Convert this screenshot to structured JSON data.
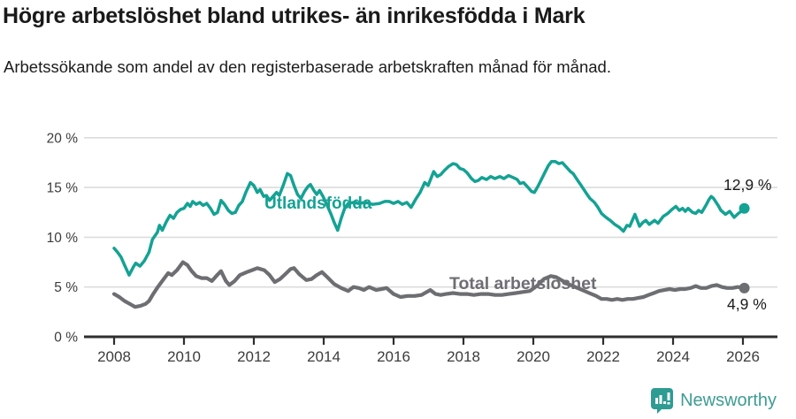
{
  "header": {
    "title": "Högre arbetslöshet bland utrikes- än inrikesfödda i Mark",
    "subtitle": "Arbetssökande som andel av den registerbaserade arbetskraften månad för månad."
  },
  "footer": {
    "brand": "Newsworthy"
  },
  "colors": {
    "foreign_born": "#14a294",
    "total": "#6d6e72",
    "grid": "#dcdcdc",
    "axis": "#2e2e2e",
    "tick_text": "#3c3c3c",
    "brand": "#2e9c93"
  },
  "chart_data": {
    "type": "line",
    "title": "Högre arbetslöshet bland utrikes- än inrikesfödda i Mark",
    "subtitle": "Arbetssökande som andel av den registerbaserade arbetskraften månad för månad.",
    "xlabel": "",
    "ylabel": "",
    "grid": true,
    "legend_position": "inline-labels",
    "xlim": [
      2007.55,
      2026.6
    ],
    "ylim": [
      0,
      20
    ],
    "x_ticks": [
      2008,
      2010,
      2012,
      2014,
      2016,
      2018,
      2020,
      2022,
      2024,
      2026
    ],
    "y_ticks": [
      0,
      5,
      10,
      15,
      20
    ],
    "y_tick_labels": [
      "0 %",
      "5 %",
      "10 %",
      "15 %",
      "20 %"
    ],
    "series": [
      {
        "name": "Utlandsfödda",
        "color": "#14a294",
        "end_value": 12.9,
        "end_label": "12,9 %",
        "points": [
          [
            2008.0,
            8.9
          ],
          [
            2008.1,
            8.5
          ],
          [
            2008.2,
            8.0
          ],
          [
            2008.3,
            7.2
          ],
          [
            2008.43,
            6.2
          ],
          [
            2008.55,
            7.0
          ],
          [
            2008.62,
            7.4
          ],
          [
            2008.74,
            7.1
          ],
          [
            2008.86,
            7.6
          ],
          [
            2009.0,
            8.5
          ],
          [
            2009.1,
            9.8
          ],
          [
            2009.24,
            10.5
          ],
          [
            2009.3,
            11.2
          ],
          [
            2009.38,
            10.7
          ],
          [
            2009.5,
            11.6
          ],
          [
            2009.6,
            12.2
          ],
          [
            2009.7,
            11.9
          ],
          [
            2009.8,
            12.5
          ],
          [
            2009.9,
            12.8
          ],
          [
            2010.0,
            12.9
          ],
          [
            2010.1,
            13.4
          ],
          [
            2010.18,
            13.1
          ],
          [
            2010.25,
            13.6
          ],
          [
            2010.35,
            13.3
          ],
          [
            2010.45,
            13.5
          ],
          [
            2010.55,
            13.2
          ],
          [
            2010.65,
            13.4
          ],
          [
            2010.76,
            12.9
          ],
          [
            2010.86,
            12.3
          ],
          [
            2010.96,
            12.5
          ],
          [
            2011.06,
            13.7
          ],
          [
            2011.16,
            13.3
          ],
          [
            2011.27,
            12.7
          ],
          [
            2011.37,
            12.4
          ],
          [
            2011.47,
            12.5
          ],
          [
            2011.57,
            13.2
          ],
          [
            2011.67,
            13.6
          ],
          [
            2011.77,
            14.5
          ],
          [
            2011.9,
            15.5
          ],
          [
            2012.0,
            15.2
          ],
          [
            2012.1,
            14.5
          ],
          [
            2012.18,
            14.8
          ],
          [
            2012.28,
            14.1
          ],
          [
            2012.36,
            14.2
          ],
          [
            2012.45,
            13.7
          ],
          [
            2012.55,
            14.1
          ],
          [
            2012.65,
            14.5
          ],
          [
            2012.73,
            14.2
          ],
          [
            2012.84,
            15.2
          ],
          [
            2012.96,
            16.4
          ],
          [
            2013.05,
            16.2
          ],
          [
            2013.15,
            15.2
          ],
          [
            2013.25,
            14.3
          ],
          [
            2013.35,
            13.9
          ],
          [
            2013.45,
            14.6
          ],
          [
            2013.55,
            15.1
          ],
          [
            2013.62,
            15.3
          ],
          [
            2013.72,
            14.7
          ],
          [
            2013.8,
            14.3
          ],
          [
            2013.88,
            14.7
          ],
          [
            2013.98,
            14.1
          ],
          [
            2014.1,
            13.2
          ],
          [
            2014.2,
            12.4
          ],
          [
            2014.3,
            11.5
          ],
          [
            2014.4,
            10.7
          ],
          [
            2014.5,
            11.9
          ],
          [
            2014.6,
            12.9
          ],
          [
            2014.7,
            13.4
          ],
          [
            2014.85,
            13.5
          ],
          [
            2015.0,
            13.4
          ],
          [
            2015.2,
            13.5
          ],
          [
            2015.4,
            13.3
          ],
          [
            2015.6,
            13.4
          ],
          [
            2015.75,
            13.6
          ],
          [
            2015.87,
            13.6
          ],
          [
            2016.0,
            13.4
          ],
          [
            2016.13,
            13.6
          ],
          [
            2016.25,
            13.3
          ],
          [
            2016.38,
            13.5
          ],
          [
            2016.5,
            13.0
          ],
          [
            2016.63,
            13.8
          ],
          [
            2016.76,
            14.5
          ],
          [
            2016.89,
            15.5
          ],
          [
            2016.99,
            15.2
          ],
          [
            2017.09,
            16.1
          ],
          [
            2017.15,
            16.6
          ],
          [
            2017.25,
            16.1
          ],
          [
            2017.35,
            16.3
          ],
          [
            2017.45,
            16.7
          ],
          [
            2017.57,
            17.1
          ],
          [
            2017.7,
            17.4
          ],
          [
            2017.8,
            17.3
          ],
          [
            2017.9,
            16.9
          ],
          [
            2018.0,
            16.8
          ],
          [
            2018.1,
            16.5
          ],
          [
            2018.23,
            15.9
          ],
          [
            2018.33,
            15.6
          ],
          [
            2018.42,
            15.7
          ],
          [
            2018.53,
            16.0
          ],
          [
            2018.66,
            15.8
          ],
          [
            2018.78,
            16.1
          ],
          [
            2018.9,
            15.9
          ],
          [
            2019.04,
            16.1
          ],
          [
            2019.16,
            15.9
          ],
          [
            2019.29,
            16.2
          ],
          [
            2019.42,
            16.0
          ],
          [
            2019.54,
            15.8
          ],
          [
            2019.62,
            15.4
          ],
          [
            2019.72,
            15.5
          ],
          [
            2019.85,
            15.0
          ],
          [
            2019.95,
            14.6
          ],
          [
            2020.03,
            14.5
          ],
          [
            2020.13,
            15.1
          ],
          [
            2020.23,
            15.8
          ],
          [
            2020.33,
            16.5
          ],
          [
            2020.43,
            17.2
          ],
          [
            2020.52,
            17.6
          ],
          [
            2020.63,
            17.6
          ],
          [
            2020.73,
            17.4
          ],
          [
            2020.83,
            17.5
          ],
          [
            2020.96,
            17.0
          ],
          [
            2021.06,
            16.6
          ],
          [
            2021.14,
            16.4
          ],
          [
            2021.27,
            15.7
          ],
          [
            2021.37,
            15.2
          ],
          [
            2021.5,
            14.5
          ],
          [
            2021.62,
            13.9
          ],
          [
            2021.75,
            13.5
          ],
          [
            2021.85,
            13.0
          ],
          [
            2021.95,
            12.4
          ],
          [
            2022.08,
            12.0
          ],
          [
            2022.2,
            11.7
          ],
          [
            2022.33,
            11.3
          ],
          [
            2022.46,
            11.0
          ],
          [
            2022.58,
            10.6
          ],
          [
            2022.68,
            11.2
          ],
          [
            2022.76,
            11.1
          ],
          [
            2022.91,
            12.3
          ],
          [
            2023.04,
            11.1
          ],
          [
            2023.14,
            11.5
          ],
          [
            2023.22,
            11.7
          ],
          [
            2023.32,
            11.3
          ],
          [
            2023.47,
            11.7
          ],
          [
            2023.57,
            11.4
          ],
          [
            2023.72,
            12.1
          ],
          [
            2023.85,
            12.4
          ],
          [
            2023.97,
            12.8
          ],
          [
            2024.08,
            13.1
          ],
          [
            2024.18,
            12.7
          ],
          [
            2024.27,
            12.9
          ],
          [
            2024.35,
            12.6
          ],
          [
            2024.43,
            12.9
          ],
          [
            2024.56,
            12.5
          ],
          [
            2024.65,
            12.4
          ],
          [
            2024.73,
            12.7
          ],
          [
            2024.82,
            12.5
          ],
          [
            2024.94,
            13.2
          ],
          [
            2025.03,
            13.8
          ],
          [
            2025.09,
            14.1
          ],
          [
            2025.16,
            13.9
          ],
          [
            2025.29,
            13.2
          ],
          [
            2025.37,
            12.7
          ],
          [
            2025.5,
            12.3
          ],
          [
            2025.62,
            12.6
          ],
          [
            2025.75,
            12.0
          ],
          [
            2025.87,
            12.4
          ],
          [
            2025.95,
            12.6
          ],
          [
            2026.04,
            12.9
          ]
        ]
      },
      {
        "name": "Total arbetslöshet",
        "color": "#6d6e72",
        "end_value": 4.9,
        "end_label": "4,9 %",
        "points": [
          [
            2008.0,
            4.3
          ],
          [
            2008.15,
            4.0
          ],
          [
            2008.3,
            3.6
          ],
          [
            2008.45,
            3.3
          ],
          [
            2008.6,
            3.0
          ],
          [
            2008.75,
            3.1
          ],
          [
            2008.9,
            3.3
          ],
          [
            2009.0,
            3.6
          ],
          [
            2009.12,
            4.3
          ],
          [
            2009.25,
            5.0
          ],
          [
            2009.4,
            5.7
          ],
          [
            2009.55,
            6.4
          ],
          [
            2009.65,
            6.2
          ],
          [
            2009.8,
            6.7
          ],
          [
            2009.97,
            7.5
          ],
          [
            2010.1,
            7.2
          ],
          [
            2010.22,
            6.6
          ],
          [
            2010.35,
            6.1
          ],
          [
            2010.5,
            5.9
          ],
          [
            2010.65,
            5.9
          ],
          [
            2010.8,
            5.6
          ],
          [
            2010.95,
            6.2
          ],
          [
            2011.06,
            6.6
          ],
          [
            2011.2,
            5.6
          ],
          [
            2011.3,
            5.2
          ],
          [
            2011.45,
            5.6
          ],
          [
            2011.6,
            6.2
          ],
          [
            2011.8,
            6.5
          ],
          [
            2011.95,
            6.7
          ],
          [
            2012.1,
            6.9
          ],
          [
            2012.3,
            6.7
          ],
          [
            2012.45,
            6.2
          ],
          [
            2012.6,
            5.5
          ],
          [
            2012.75,
            5.8
          ],
          [
            2012.9,
            6.3
          ],
          [
            2013.05,
            6.8
          ],
          [
            2013.15,
            6.9
          ],
          [
            2013.3,
            6.3
          ],
          [
            2013.5,
            5.7
          ],
          [
            2013.65,
            5.8
          ],
          [
            2013.8,
            6.2
          ],
          [
            2013.95,
            6.5
          ],
          [
            2014.1,
            6.0
          ],
          [
            2014.3,
            5.3
          ],
          [
            2014.5,
            4.9
          ],
          [
            2014.7,
            4.6
          ],
          [
            2014.85,
            5.0
          ],
          [
            2015.0,
            4.9
          ],
          [
            2015.15,
            4.7
          ],
          [
            2015.3,
            5.0
          ],
          [
            2015.5,
            4.7
          ],
          [
            2015.65,
            4.8
          ],
          [
            2015.8,
            4.9
          ],
          [
            2016.0,
            4.3
          ],
          [
            2016.2,
            4.0
          ],
          [
            2016.4,
            4.1
          ],
          [
            2016.6,
            4.1
          ],
          [
            2016.8,
            4.2
          ],
          [
            2016.95,
            4.5
          ],
          [
            2017.05,
            4.7
          ],
          [
            2017.2,
            4.3
          ],
          [
            2017.35,
            4.2
          ],
          [
            2017.5,
            4.3
          ],
          [
            2017.7,
            4.4
          ],
          [
            2017.9,
            4.3
          ],
          [
            2018.1,
            4.3
          ],
          [
            2018.3,
            4.2
          ],
          [
            2018.5,
            4.3
          ],
          [
            2018.7,
            4.3
          ],
          [
            2018.9,
            4.2
          ],
          [
            2019.1,
            4.2
          ],
          [
            2019.3,
            4.3
          ],
          [
            2019.5,
            4.4
          ],
          [
            2019.7,
            4.5
          ],
          [
            2019.9,
            4.6
          ],
          [
            2020.1,
            5.1
          ],
          [
            2020.3,
            5.8
          ],
          [
            2020.5,
            6.1
          ],
          [
            2020.65,
            6.0
          ],
          [
            2020.8,
            5.7
          ],
          [
            2021.0,
            5.3
          ],
          [
            2021.2,
            5.0
          ],
          [
            2021.4,
            4.7
          ],
          [
            2021.6,
            4.4
          ],
          [
            2021.8,
            4.1
          ],
          [
            2021.95,
            3.8
          ],
          [
            2022.1,
            3.8
          ],
          [
            2022.25,
            3.7
          ],
          [
            2022.4,
            3.8
          ],
          [
            2022.55,
            3.7
          ],
          [
            2022.7,
            3.8
          ],
          [
            2022.85,
            3.8
          ],
          [
            2023.0,
            3.9
          ],
          [
            2023.15,
            4.0
          ],
          [
            2023.3,
            4.2
          ],
          [
            2023.45,
            4.4
          ],
          [
            2023.6,
            4.6
          ],
          [
            2023.75,
            4.7
          ],
          [
            2023.9,
            4.8
          ],
          [
            2024.05,
            4.7
          ],
          [
            2024.2,
            4.8
          ],
          [
            2024.35,
            4.8
          ],
          [
            2024.5,
            4.9
          ],
          [
            2024.65,
            5.1
          ],
          [
            2024.8,
            4.9
          ],
          [
            2024.95,
            4.9
          ],
          [
            2025.1,
            5.1
          ],
          [
            2025.25,
            5.2
          ],
          [
            2025.4,
            5.0
          ],
          [
            2025.55,
            4.9
          ],
          [
            2025.7,
            4.9
          ],
          [
            2025.85,
            5.0
          ],
          [
            2026.04,
            4.9
          ]
        ]
      }
    ]
  }
}
